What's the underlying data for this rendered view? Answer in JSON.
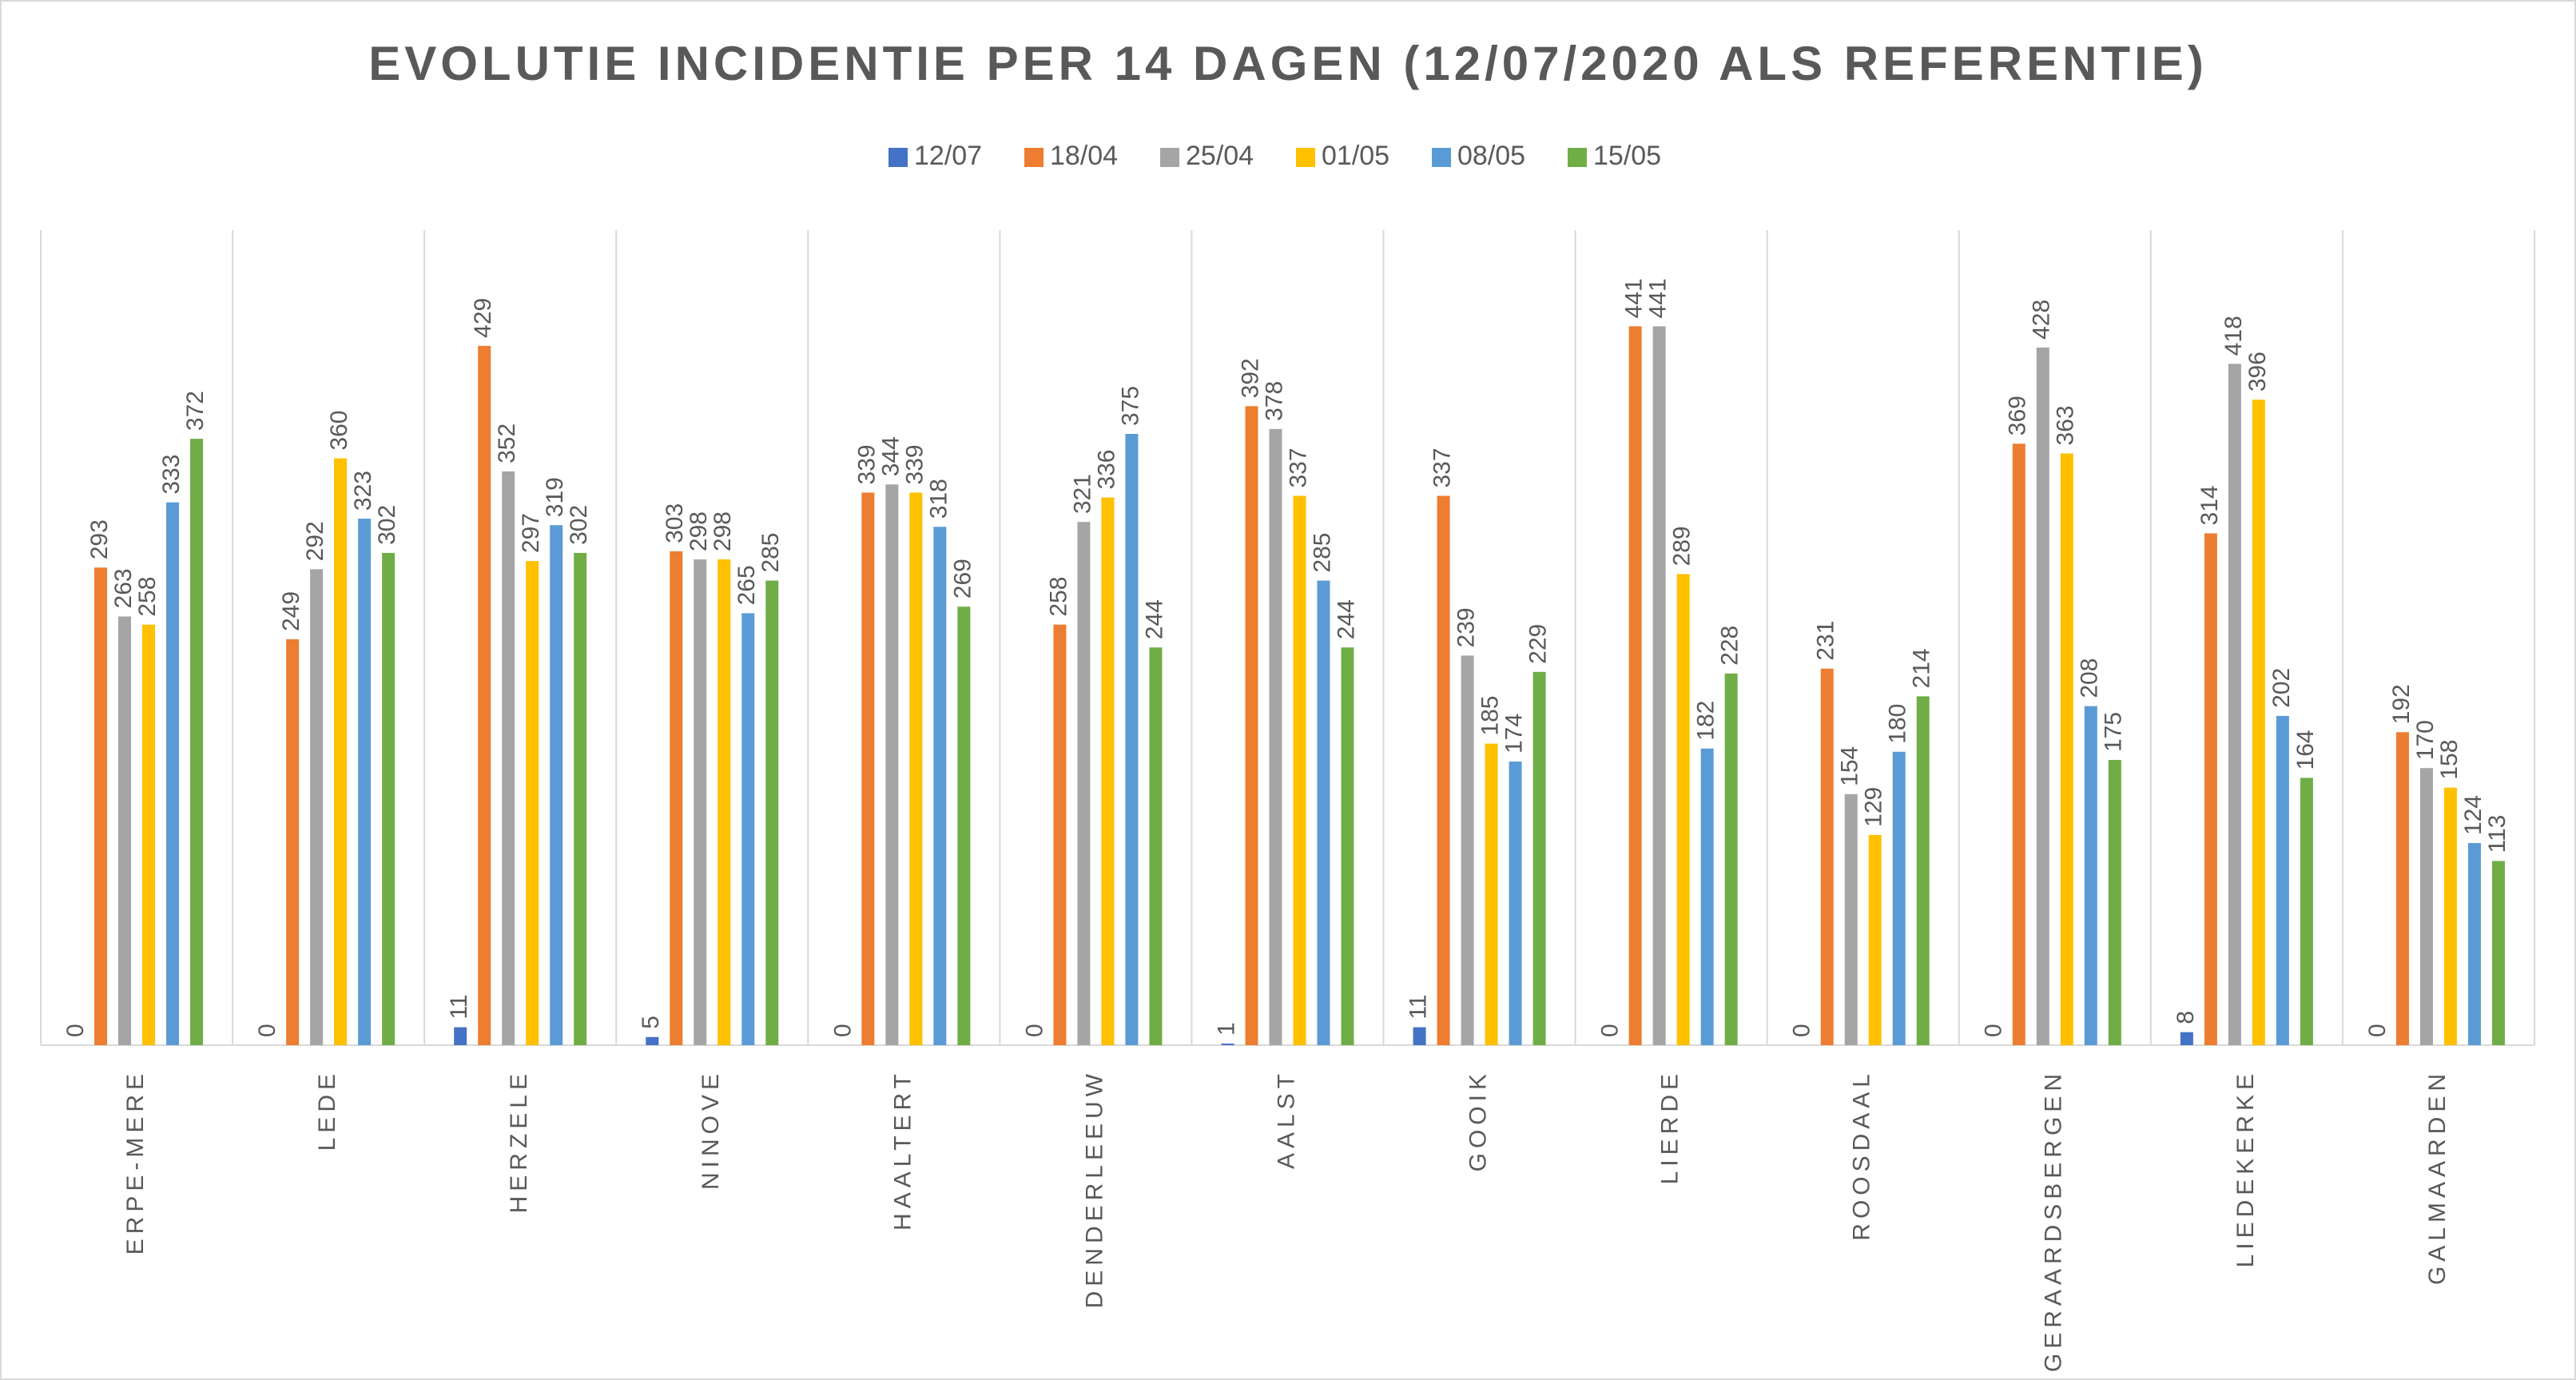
{
  "chart_data": {
    "type": "bar",
    "title": "EVOLUTIE INCIDENTIE PER 14 DAGEN (12/07/2020 ALS REFERENTIE)",
    "categories": [
      "ERPE-MERE",
      "LEDE",
      "HERZELE",
      "NINOVE",
      "HAALTERT",
      "DENDERLEEUW",
      "AALST",
      "GOOIK",
      "LIERDE",
      "ROOSDAAL",
      "GERAARDSBERGEN",
      "LIEDEKERKE",
      "GALMAARDEN"
    ],
    "series": [
      {
        "name": "12/07",
        "color": "#4472c4",
        "values": [
          0,
          0,
          11,
          5,
          0,
          0,
          1,
          11,
          0,
          0,
          0,
          8,
          0
        ]
      },
      {
        "name": "18/04",
        "color": "#ed7d31",
        "values": [
          293,
          249,
          429,
          303,
          339,
          258,
          392,
          337,
          441,
          231,
          369,
          314,
          192
        ]
      },
      {
        "name": "25/04",
        "color": "#a5a5a5",
        "values": [
          263,
          292,
          352,
          298,
          344,
          321,
          378,
          239,
          441,
          154,
          428,
          418,
          170
        ]
      },
      {
        "name": "01/05",
        "color": "#ffc000",
        "values": [
          258,
          360,
          297,
          298,
          339,
          336,
          337,
          185,
          289,
          129,
          363,
          396,
          158
        ]
      },
      {
        "name": "08/05",
        "color": "#5b9bd5",
        "values": [
          333,
          323,
          319,
          265,
          318,
          375,
          285,
          174,
          182,
          180,
          208,
          202,
          124
        ]
      },
      {
        "name": "15/05",
        "color": "#70ad47",
        "values": [
          372,
          302,
          302,
          285,
          269,
          244,
          244,
          229,
          228,
          214,
          175,
          164,
          113
        ]
      }
    ],
    "ylim": [
      0,
      500
    ],
    "legend": "top"
  }
}
